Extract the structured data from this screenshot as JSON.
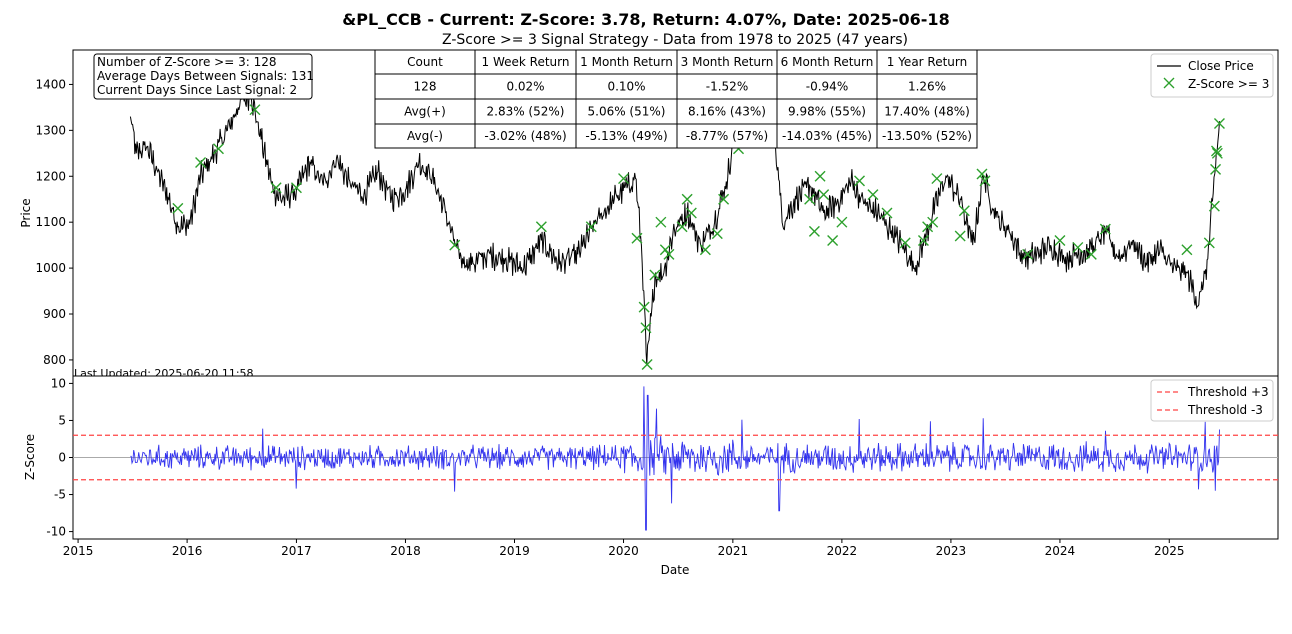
{
  "figure": {
    "title": "&PL_CCB - Current: Z-Score: 3.78, Return: 4.07%, Date: 2025-06-18",
    "subtitle": "Z-Score >= 3 Signal Strategy - Data from 1978 to 2025 (47 years)",
    "last_updated": "Last Updated: 2025-06-20 11:58"
  },
  "info_box": {
    "lines": [
      "Number of Z-Score >= 3: 128",
      "Average Days Between Signals: 131",
      "Current Days Since Last Signal: 2"
    ]
  },
  "stats_table": {
    "headers": [
      "Count",
      "1 Week Return",
      "1 Month Return",
      "3 Month Return",
      "6 Month Return",
      "1 Year Return"
    ],
    "rows": [
      [
        "128",
        "0.02%",
        "0.10%",
        "-1.52%",
        "-0.94%",
        "1.26%"
      ],
      [
        "Avg(+)",
        "2.83% (52%)",
        "5.06% (51%)",
        "8.16% (43%)",
        "9.98% (55%)",
        "17.40% (48%)"
      ],
      [
        "Avg(-)",
        "-3.02% (48%)",
        "-5.13% (49%)",
        "-8.77% (57%)",
        "-14.03% (45%)",
        "-13.50% (52%)"
      ]
    ]
  },
  "colors": {
    "price_line": "#000000",
    "signal_marker": "#2ca02c",
    "zscore_line": "#3333ee",
    "threshold": "#ff4444",
    "zero_line": "#aaaaaa"
  },
  "chart_data": [
    {
      "type": "line",
      "ylabel": "Price",
      "ylim": [
        765,
        1475
      ],
      "xlim": [
        "2014-12-15",
        "2025-12-31"
      ],
      "yticks": [
        800,
        900,
        1000,
        1100,
        1200,
        1300,
        1400
      ],
      "legend": {
        "placement": "top-right",
        "entries": [
          "Close Price",
          "Z-Score >= 3"
        ]
      },
      "series": [
        {
          "name": "Close Price",
          "x": [
            "2015-06-25",
            "2015-07-15",
            "2015-08-20",
            "2015-09-25",
            "2015-11-01",
            "2015-12-01",
            "2016-01-10",
            "2016-02-15",
            "2016-04-01",
            "2016-05-15",
            "2016-06-20",
            "2016-08-01",
            "2016-09-05",
            "2016-10-15",
            "2016-11-15",
            "2017-01-01",
            "2017-02-15",
            "2017-04-01",
            "2017-05-15",
            "2017-07-01",
            "2017-08-15",
            "2017-10-01",
            "2017-11-15",
            "2018-01-01",
            "2018-02-15",
            "2018-04-01",
            "2018-05-15",
            "2018-07-01",
            "2018-08-15",
            "2018-10-01",
            "2018-12-01",
            "2019-02-01",
            "2019-04-01",
            "2019-06-01",
            "2019-08-01",
            "2019-10-01",
            "2019-12-01",
            "2020-01-15",
            "2020-02-10",
            "2020-03-01",
            "2020-03-19",
            "2020-04-15",
            "2020-05-15",
            "2020-06-15",
            "2020-08-01",
            "2020-09-15",
            "2020-11-01",
            "2020-12-15",
            "2021-01-20",
            "2021-02-15",
            "2021-03-20",
            "2021-05-01",
            "2021-06-01",
            "2021-06-15",
            "2021-08-01",
            "2021-09-15",
            "2021-11-01",
            "2021-12-15",
            "2022-02-01",
            "2022-03-15",
            "2022-05-01",
            "2022-06-15",
            "2022-08-01",
            "2022-09-01",
            "2022-10-01",
            "2022-11-01",
            "2022-12-15",
            "2023-02-01",
            "2023-03-15",
            "2023-04-20",
            "2023-06-01",
            "2023-07-15",
            "2023-09-01",
            "2023-10-15",
            "2023-12-01",
            "2024-01-15",
            "2024-03-01",
            "2024-04-15",
            "2024-06-01",
            "2024-07-15",
            "2024-09-01",
            "2024-10-15",
            "2024-12-01",
            "2025-01-15",
            "2025-03-01",
            "2025-04-10",
            "2025-05-10",
            "2025-06-05",
            "2025-06-18"
          ],
          "y": [
            1330,
            1250,
            1265,
            1210,
            1150,
            1090,
            1095,
            1200,
            1250,
            1300,
            1350,
            1380,
            1280,
            1170,
            1150,
            1170,
            1230,
            1180,
            1240,
            1180,
            1160,
            1210,
            1150,
            1170,
            1230,
            1200,
            1120,
            1020,
            1010,
            1030,
            1020,
            1000,
            1060,
            1010,
            1030,
            1100,
            1150,
            1180,
            1195,
            1050,
            790,
            980,
            990,
            1080,
            1120,
            1050,
            1100,
            1200,
            1350,
            1390,
            1350,
            1400,
            1220,
            1100,
            1150,
            1180,
            1120,
            1140,
            1190,
            1140,
            1120,
            1080,
            1040,
            1000,
            1050,
            1120,
            1200,
            1150,
            1050,
            1200,
            1110,
            1080,
            1020,
            1030,
            1050,
            1020,
            1030,
            1040,
            1080,
            1020,
            1060,
            1010,
            1040,
            1000,
            990,
            920,
            1020,
            1220,
            1320
          ]
        },
        {
          "name": "Z-Score >= 3",
          "x": [
            "2015-12-01",
            "2016-02-15",
            "2016-04-15",
            "2016-08-15",
            "2016-10-25",
            "2017-01-01",
            "2018-06-15",
            "2019-04-01",
            "2019-09-15",
            "2020-01-01",
            "2020-02-15",
            "2020-03-10",
            "2020-03-16",
            "2020-03-20",
            "2020-04-15",
            "2020-05-05",
            "2020-05-20",
            "2020-06-01",
            "2020-07-15",
            "2020-08-01",
            "2020-08-15",
            "2020-10-01",
            "2020-11-10",
            "2020-12-01",
            "2021-01-20",
            "2021-02-01",
            "2021-02-20",
            "2021-09-15",
            "2021-10-01",
            "2021-10-20",
            "2021-11-01",
            "2021-12-01",
            "2022-01-01",
            "2022-03-01",
            "2022-04-15",
            "2022-06-01",
            "2022-08-01",
            "2022-10-01",
            "2022-10-15",
            "2022-11-01",
            "2022-11-15",
            "2023-02-01",
            "2023-02-15",
            "2023-04-15",
            "2023-04-25",
            "2023-09-15",
            "2024-01-01",
            "2024-03-01",
            "2024-04-15",
            "2024-06-01",
            "2025-03-01",
            "2025-05-15",
            "2025-06-01",
            "2025-06-05",
            "2025-06-08",
            "2025-06-11",
            "2025-06-18"
          ],
          "y": [
            1130,
            1230,
            1260,
            1345,
            1175,
            1175,
            1050,
            1090,
            1090,
            1195,
            1065,
            915,
            870,
            790,
            985,
            1100,
            1040,
            1030,
            1090,
            1150,
            1120,
            1040,
            1075,
            1150,
            1260,
            1335,
            1390,
            1150,
            1080,
            1200,
            1160,
            1060,
            1100,
            1190,
            1160,
            1120,
            1055,
            1060,
            1090,
            1100,
            1195,
            1070,
            1125,
            1205,
            1190,
            1030,
            1060,
            1045,
            1030,
            1085,
            1040,
            1055,
            1135,
            1215,
            1255,
            1250,
            1315
          ]
        }
      ]
    },
    {
      "type": "line",
      "xlabel": "Date",
      "ylabel": "Z-Score",
      "ylim": [
        -11,
        11
      ],
      "yticks": [
        -10,
        -5,
        0,
        5,
        10
      ],
      "xticks": [
        "2015",
        "2016",
        "2017",
        "2018",
        "2019",
        "2020",
        "2021",
        "2022",
        "2023",
        "2024",
        "2025"
      ],
      "legend": {
        "placement": "top-right",
        "entries": [
          "Threshold +3",
          "Threshold -3"
        ]
      },
      "thresholds": [
        3,
        -3
      ],
      "series": [
        {
          "name": "Threshold +3",
          "value": 3
        },
        {
          "name": "Threshold -3",
          "value": -3
        }
      ],
      "zscore_spikes": {
        "x": [
          "2016-09-10",
          "2017-01-01",
          "2018-06-15",
          "2020-03-10",
          "2020-03-16",
          "2020-03-22",
          "2020-04-20",
          "2020-06-10",
          "2021-02-01",
          "2021-06-05",
          "2022-03-01",
          "2022-10-25",
          "2023-04-20",
          "2024-06-01",
          "2025-04-10",
          "2025-05-01",
          "2025-06-05",
          "2025-06-18"
        ],
        "y": [
          3.9,
          -4.2,
          -4.6,
          9.6,
          -9.8,
          8.4,
          6.6,
          -6.2,
          5.1,
          -7.2,
          5.2,
          4.9,
          5.3,
          3.6,
          -4.3,
          4.8,
          -4.5,
          3.78
        ]
      }
    }
  ]
}
